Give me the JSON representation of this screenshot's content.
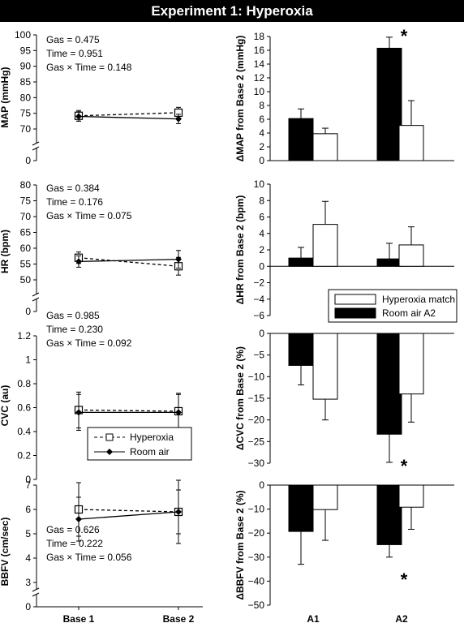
{
  "figure_title": "Experiment 1: Hyperoxia",
  "chart_data": [
    {
      "id": "map_line",
      "type": "line",
      "ylabel": "MAP (mmHg)",
      "categories": [
        "Base 1",
        "Base 2"
      ],
      "yticks": [
        0,
        70,
        75,
        80,
        85,
        90,
        95,
        100
      ],
      "axis_break": true,
      "series": [
        {
          "name": "Hyperoxia",
          "values": [
            74.2,
            75.2
          ],
          "errors": [
            1.7,
            1.7
          ]
        },
        {
          "name": "Room air",
          "values": [
            74.0,
            73.2
          ],
          "errors": [
            1.5,
            1.5
          ]
        }
      ],
      "stats": [
        "Gas = 0.475",
        "Time = 0.951",
        "Gas × Time = 0.148"
      ]
    },
    {
      "id": "map_bar",
      "type": "bar",
      "ylabel": "ΔMAP from Base 2 (mmHg)",
      "categories": [
        "A1",
        "A2"
      ],
      "ylim": [
        0,
        18
      ],
      "yticks": [
        0,
        2,
        4,
        6,
        8,
        10,
        12,
        14,
        16,
        18
      ],
      "series": [
        {
          "name": "Room air A2",
          "values": [
            6.1,
            16.3
          ],
          "errors": [
            1.4,
            1.6
          ]
        },
        {
          "name": "Hyperoxia match",
          "values": [
            3.9,
            5.1
          ],
          "errors": [
            0.8,
            3.6
          ]
        }
      ],
      "annotations": [
        {
          "text": "*",
          "category": "A2"
        }
      ]
    },
    {
      "id": "hr_line",
      "type": "line",
      "ylabel": "HR (bpm)",
      "categories": [
        "Base 1",
        "Base 2"
      ],
      "yticks": [
        0,
        50,
        55,
        60,
        65,
        70,
        75,
        80
      ],
      "axis_break": true,
      "series": [
        {
          "name": "Hyperoxia",
          "values": [
            57.0,
            54.3
          ],
          "errors": [
            1.8,
            2.8
          ]
        },
        {
          "name": "Room air",
          "values": [
            55.8,
            56.5
          ],
          "errors": [
            1.8,
            2.8
          ]
        }
      ],
      "stats": [
        "Gas = 0.384",
        "Time = 0.176",
        "Gas × Time = 0.075"
      ]
    },
    {
      "id": "hr_bar",
      "type": "bar",
      "ylabel": "ΔHR from Base 2 (bpm)",
      "categories": [
        "A1",
        "A2"
      ],
      "ylim": [
        -6,
        10
      ],
      "yticks": [
        -6,
        -4,
        -2,
        0,
        2,
        4,
        6,
        8,
        10
      ],
      "series": [
        {
          "name": "Room air A2",
          "values": [
            1.0,
            0.9
          ],
          "errors": [
            1.3,
            1.9
          ]
        },
        {
          "name": "Hyperoxia match",
          "values": [
            5.1,
            2.6
          ],
          "errors": [
            2.8,
            2.2
          ]
        }
      ],
      "legend": [
        "Hyperoxia match",
        "Room air A2"
      ]
    },
    {
      "id": "cvc_line",
      "type": "line",
      "ylabel": "CVC (au)",
      "categories": [
        "Base 1",
        "Base 2"
      ],
      "ylim": [
        0,
        1.2
      ],
      "yticks": [
        0,
        0.2,
        0.4,
        0.6,
        0.8,
        1,
        1.2
      ],
      "series": [
        {
          "name": "Hyperoxia",
          "values": [
            0.58,
            0.57
          ],
          "errors": [
            0.15,
            0.15
          ]
        },
        {
          "name": "Room air",
          "values": [
            0.56,
            0.56
          ],
          "errors": [
            0.15,
            0.15
          ]
        }
      ],
      "stats": [
        "Gas = 0.985",
        "Time = 0.230",
        "Gas × Time = 0.092"
      ],
      "legend": [
        "Hyperoxia",
        "Room air"
      ]
    },
    {
      "id": "cvc_bar",
      "type": "bar",
      "ylabel": "ΔCVC from Base 2 (%)",
      "categories": [
        "A1",
        "A2"
      ],
      "ylim": [
        -30,
        0
      ],
      "yticks": [
        -30,
        -25,
        -20,
        -15,
        -10,
        -5,
        0
      ],
      "series": [
        {
          "name": "Room air A2",
          "values": [
            -7.4,
            -23.3
          ],
          "errors": [
            4.5,
            6.5
          ]
        },
        {
          "name": "Hyperoxia match",
          "values": [
            -15.2,
            -14.0
          ],
          "errors": [
            4.8,
            6.5
          ]
        }
      ],
      "annotations": [
        {
          "text": "*",
          "category": "A2"
        }
      ]
    },
    {
      "id": "bbfv_line",
      "type": "line",
      "ylabel": "BBFV (cm/sec)",
      "categories": [
        "Base 1",
        "Base 2"
      ],
      "yticks": [
        0,
        3,
        4,
        5,
        6,
        7
      ],
      "axis_break": true,
      "series": [
        {
          "name": "Hyperoxia",
          "values": [
            6.0,
            5.9
          ],
          "errors": [
            1.1,
            1.3
          ]
        },
        {
          "name": "Room air",
          "values": [
            5.6,
            5.9
          ],
          "errors": [
            0.9,
            0.9
          ]
        }
      ],
      "stats": [
        "Gas = 0.626",
        "Time = 0.222",
        "Gas × Time = 0.056"
      ]
    },
    {
      "id": "bbfv_bar",
      "type": "bar",
      "ylabel": "ΔBBFV from Base 2 (%)",
      "categories": [
        "A1",
        "A2"
      ],
      "ylim": [
        -50,
        0
      ],
      "yticks": [
        -50,
        -40,
        -30,
        -20,
        -10,
        0
      ],
      "series": [
        {
          "name": "Room air A2",
          "values": [
            -19.3,
            -24.8
          ],
          "errors": [
            13.7,
            5.2
          ]
        },
        {
          "name": "Hyperoxia match",
          "values": [
            -10.2,
            -9.2
          ],
          "errors": [
            12.8,
            9.2
          ]
        }
      ],
      "annotations": [
        {
          "text": "*",
          "category": "A2"
        }
      ]
    }
  ]
}
